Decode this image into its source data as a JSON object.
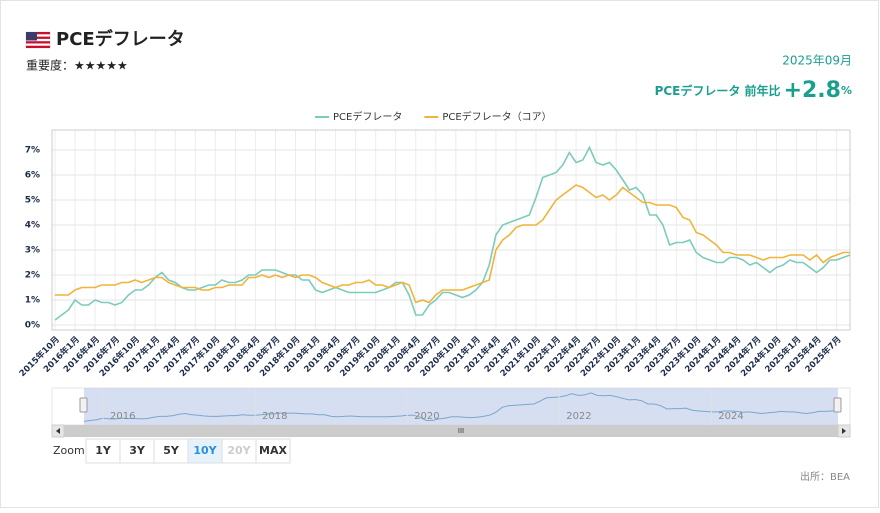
{
  "header": {
    "title": "PCEデフレータ",
    "importance": "重要度：★★★★★",
    "date": "2025年09月",
    "latest_label": "PCEデフレータ 前年比",
    "latest_value": "+2.8",
    "latest_unit": "%"
  },
  "chart_data": {
    "type": "line",
    "legend": "top",
    "grid": true,
    "categories": [
      "2015年10月",
      null,
      null,
      "2016年1月",
      null,
      null,
      "2016年4月",
      null,
      null,
      "2016年7月",
      null,
      null,
      "2016年10月",
      null,
      null,
      "2017年1月",
      null,
      null,
      "2017年4月",
      null,
      null,
      "2017年7月",
      null,
      null,
      "2017年10月",
      null,
      null,
      "2018年1月",
      null,
      null,
      "2018年4月",
      null,
      null,
      "2018年7月",
      null,
      null,
      "2018年10月",
      null,
      null,
      "2019年1月",
      null,
      null,
      "2019年4月",
      null,
      null,
      "2019年7月",
      null,
      null,
      "2019年10月",
      null,
      null,
      "2020年1月",
      null,
      null,
      "2020年4月",
      null,
      null,
      "2020年7月",
      null,
      null,
      "2020年10月",
      null,
      null,
      "2021年1月",
      null,
      null,
      "2021年4月",
      null,
      null,
      "2021年7月",
      null,
      null,
      "2021年10月",
      null,
      null,
      "2022年1月",
      null,
      null,
      "2022年4月",
      null,
      null,
      "2022年7月",
      null,
      null,
      "2022年10月",
      null,
      null,
      "2023年1月",
      null,
      null,
      "2023年4月",
      null,
      null,
      "2023年7月",
      null,
      null,
      "2023年10月",
      null,
      null,
      "2024年1月",
      null,
      null,
      "2024年4月",
      null,
      null,
      "2024年7月",
      null,
      null,
      "2024年10月",
      null,
      null,
      "2025年1月",
      null,
      null,
      "2025年4月",
      null,
      null,
      "2025年7月",
      null,
      null
    ],
    "series": [
      {
        "name": "PCEデフレータ",
        "color": "#7ccbbb",
        "values": [
          0.2,
          0.4,
          0.6,
          1.0,
          0.8,
          0.8,
          1.0,
          0.9,
          0.9,
          0.8,
          0.9,
          1.2,
          1.4,
          1.4,
          1.6,
          1.9,
          2.1,
          1.8,
          1.7,
          1.5,
          1.4,
          1.4,
          1.5,
          1.6,
          1.6,
          1.8,
          1.7,
          1.7,
          1.8,
          2.0,
          2.0,
          2.2,
          2.2,
          2.2,
          2.1,
          2.0,
          2.0,
          1.8,
          1.8,
          1.4,
          1.3,
          1.4,
          1.5,
          1.4,
          1.3,
          1.3,
          1.3,
          1.3,
          1.3,
          1.4,
          1.5,
          1.7,
          1.7,
          1.2,
          0.4,
          0.4,
          0.8,
          1.0,
          1.3,
          1.3,
          1.2,
          1.1,
          1.2,
          1.4,
          1.7,
          2.4,
          3.6,
          4.0,
          4.1,
          4.2,
          4.3,
          4.4,
          5.1,
          5.9,
          6.0,
          6.1,
          6.4,
          6.9,
          6.5,
          6.6,
          7.1,
          6.5,
          6.4,
          6.5,
          6.2,
          5.8,
          5.4,
          5.5,
          5.2,
          4.4,
          4.4,
          4.0,
          3.2,
          3.3,
          3.3,
          3.4,
          2.9,
          2.7,
          2.6,
          2.5,
          2.5,
          2.7,
          2.7,
          2.6,
          2.4,
          2.5,
          2.3,
          2.1,
          2.3,
          2.4,
          2.6,
          2.5,
          2.5,
          2.3,
          2.1,
          2.3,
          2.6,
          2.6,
          2.7,
          2.8
        ]
      },
      {
        "name": "PCEデフレータ（コア）",
        "color": "#f0b43a",
        "values": [
          1.2,
          1.2,
          1.2,
          1.4,
          1.5,
          1.5,
          1.5,
          1.6,
          1.6,
          1.6,
          1.7,
          1.7,
          1.8,
          1.7,
          1.8,
          1.9,
          1.9,
          1.7,
          1.6,
          1.5,
          1.5,
          1.5,
          1.4,
          1.4,
          1.5,
          1.5,
          1.6,
          1.6,
          1.6,
          1.9,
          1.9,
          2.0,
          1.9,
          2.0,
          1.9,
          2.0,
          1.9,
          2.0,
          2.0,
          1.9,
          1.7,
          1.6,
          1.5,
          1.6,
          1.6,
          1.7,
          1.7,
          1.8,
          1.6,
          1.6,
          1.5,
          1.6,
          1.7,
          1.6,
          0.9,
          1.0,
          0.9,
          1.2,
          1.4,
          1.4,
          1.4,
          1.4,
          1.5,
          1.6,
          1.7,
          1.8,
          3.0,
          3.4,
          3.6,
          3.9,
          4.0,
          4.0,
          4.0,
          4.2,
          4.6,
          5.0,
          5.2,
          5.4,
          5.6,
          5.5,
          5.3,
          5.1,
          5.2,
          5.0,
          5.2,
          5.5,
          5.3,
          5.1,
          4.9,
          4.9,
          4.8,
          4.8,
          4.8,
          4.7,
          4.3,
          4.2,
          3.7,
          3.6,
          3.4,
          3.2,
          2.9,
          2.9,
          2.8,
          2.8,
          2.8,
          2.7,
          2.6,
          2.7,
          2.7,
          2.7,
          2.8,
          2.8,
          2.8,
          2.6,
          2.8,
          2.5,
          2.7,
          2.8,
          2.9,
          2.9
        ]
      }
    ],
    "ylim": [
      -0.2,
      7.8
    ],
    "yticks": [
      {
        "value": 0,
        "label": "0%"
      },
      {
        "value": 1,
        "label": "1%"
      },
      {
        "value": 2,
        "label": "2%"
      },
      {
        "value": 3,
        "label": "3%"
      },
      {
        "value": 4,
        "label": "4%"
      },
      {
        "value": 5,
        "label": "5%"
      },
      {
        "value": 6,
        "label": "6%"
      },
      {
        "value": 7,
        "label": "7%"
      }
    ]
  },
  "navigator": {
    "labels": [
      "2016",
      "2018",
      "2020",
      "2022",
      "2024"
    ],
    "scroll": "III"
  },
  "zoom": {
    "label": "Zoom",
    "buttons": [
      "1Y",
      "3Y",
      "5Y",
      "10Y",
      "20Y",
      "MAX"
    ],
    "selected": "10Y",
    "disabled": "20Y"
  },
  "source": "出所：BEA"
}
